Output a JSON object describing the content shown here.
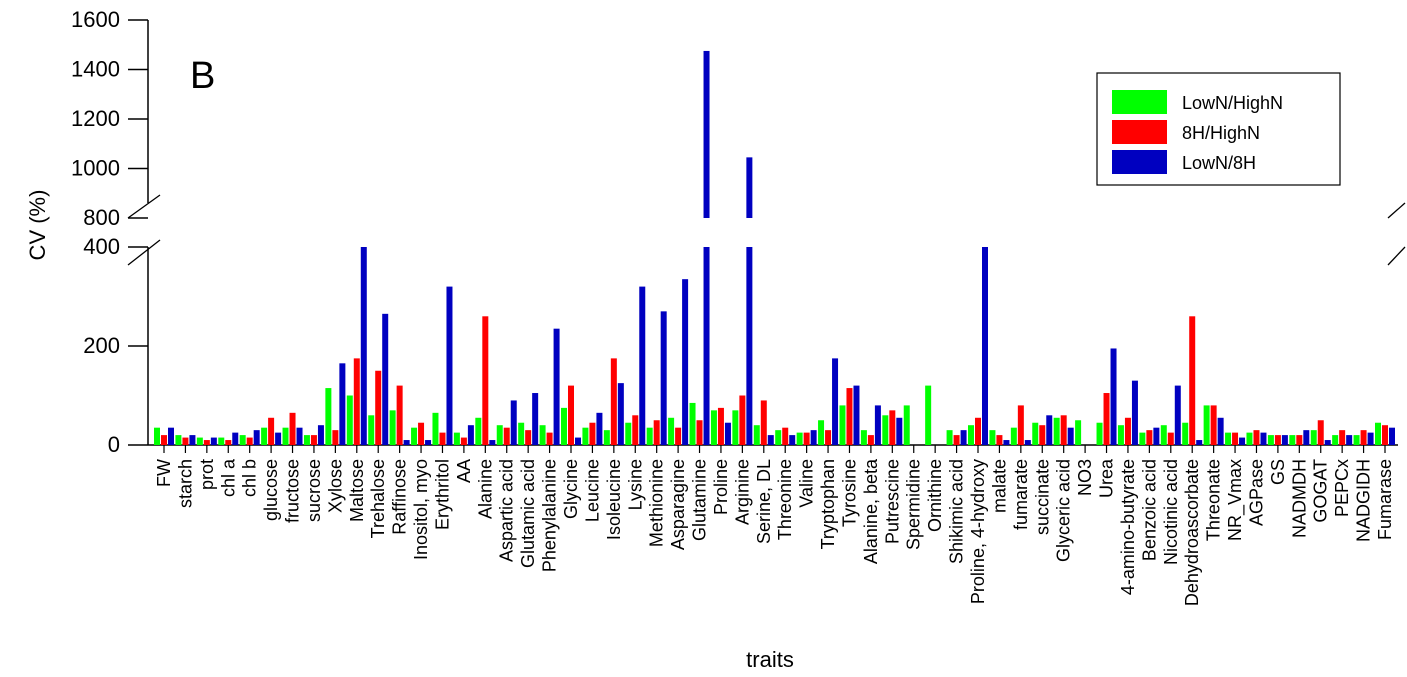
{
  "chart_data": {
    "type": "bar",
    "panel_label": "B",
    "xlabel": "traits",
    "ylabel": "CV (%)",
    "y_axis_break": {
      "lower_range": [
        0,
        400
      ],
      "upper_range": [
        800,
        1600
      ]
    },
    "lower_ticks": [
      0,
      200,
      400
    ],
    "upper_ticks": [
      800,
      1000,
      1200,
      1400,
      1600
    ],
    "legend_position": "top-right",
    "categories": [
      "FW",
      "starch",
      "prot",
      "chl a",
      "chl b",
      "glucose",
      "fructose",
      "sucrose",
      "Xylose",
      "Maltose",
      "Trehalose",
      "Raffinose",
      "Inositol, myo",
      "Erythritol",
      "AA",
      "Alanine",
      "Aspartic acid",
      "Glutamic acid",
      "Phenylalanine",
      "Glycine",
      "Leucine",
      "Isoleucine",
      "Lysine",
      "Methionine",
      "Asparagine",
      "Glutamine",
      "Proline",
      "Arginine",
      "Serine, DL",
      "Threonine",
      "Valine",
      "Tryptophan",
      "Tyrosine",
      "Alanine, beta",
      "Putrescine",
      "Spermidine",
      "Ornithine",
      "Shikimic acid",
      "Proline, 4-hydroxy",
      "malate",
      "fumarate",
      "succinate",
      "Glyceric acid",
      "NO3",
      "Urea",
      "4-amino-butyrate",
      "Benzoic acid",
      "Nicotinic acid",
      "Dehydroascorbate",
      "Threonate",
      "NR_Vmax",
      "AGPase",
      "GS",
      "NADMDH",
      "GOGAT",
      "PEPCx",
      "NADGIDH",
      "Fumarase"
    ],
    "series": [
      {
        "name": "LowN/HighN",
        "color": "#00ff00",
        "values": [
          35,
          20,
          15,
          15,
          20,
          35,
          35,
          20,
          115,
          100,
          60,
          70,
          35,
          65,
          25,
          55,
          40,
          45,
          40,
          75,
          35,
          30,
          45,
          35,
          55,
          85,
          70,
          70,
          40,
          30,
          25,
          50,
          80,
          30,
          60,
          80,
          120,
          30,
          40,
          30,
          35,
          45,
          55,
          50,
          45,
          40,
          25,
          40,
          45,
          80,
          25,
          25,
          20,
          20,
          30,
          20,
          20,
          45
        ]
      },
      {
        "name": "8H/HighN",
        "color": "#ff0000",
        "values": [
          20,
          15,
          10,
          10,
          15,
          55,
          65,
          20,
          30,
          175,
          150,
          120,
          45,
          25,
          15,
          260,
          35,
          30,
          25,
          120,
          45,
          175,
          60,
          50,
          35,
          50,
          75,
          100,
          90,
          35,
          25,
          30,
          115,
          20,
          70,
          0,
          0,
          20,
          55,
          20,
          80,
          40,
          60,
          0,
          105,
          55,
          30,
          25,
          260,
          80,
          25,
          30,
          20,
          20,
          50,
          30,
          30,
          40
        ]
      },
      {
        "name": "LowN/8H",
        "color": "#0000c0",
        "values": [
          35,
          20,
          15,
          25,
          30,
          25,
          35,
          40,
          165,
          400,
          265,
          10,
          10,
          320,
          40,
          10,
          90,
          105,
          235,
          15,
          65,
          125,
          320,
          270,
          335,
          1475,
          45,
          1045,
          20,
          20,
          30,
          175,
          120,
          80,
          55,
          0,
          0,
          30,
          405,
          10,
          10,
          60,
          35,
          0,
          195,
          130,
          35,
          120,
          10,
          55,
          15,
          25,
          20,
          30,
          10,
          20,
          25,
          35
        ]
      }
    ]
  }
}
